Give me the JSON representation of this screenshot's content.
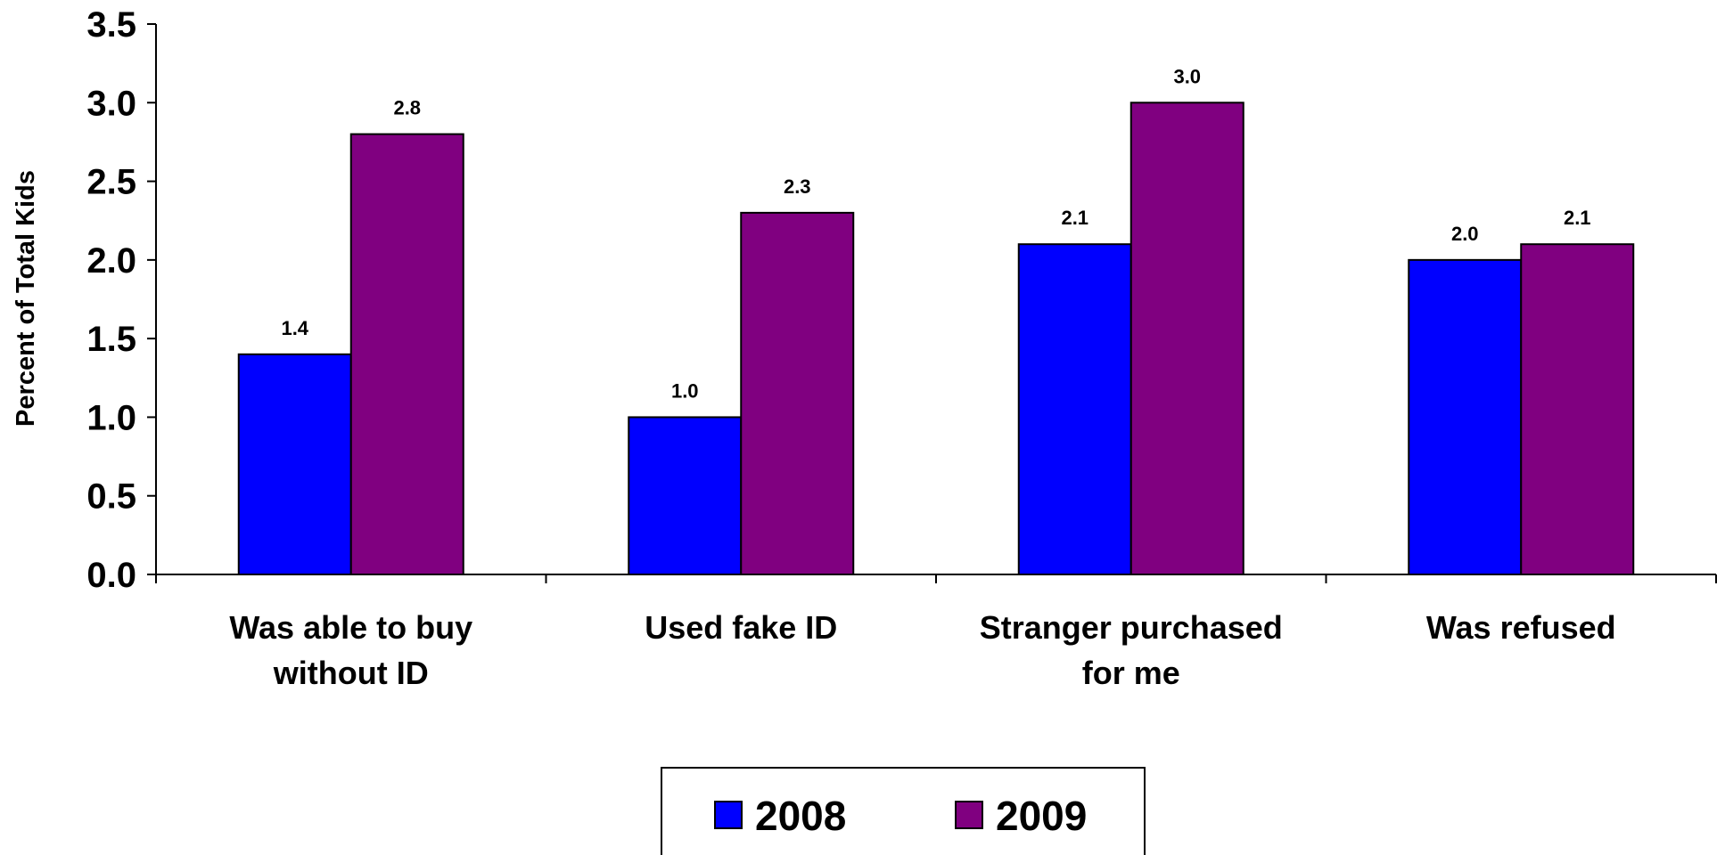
{
  "chart_data": {
    "type": "bar",
    "ylabel": "Percent of Total Kids",
    "ylim": [
      0,
      3.5
    ],
    "yticks": [
      "0.0",
      "0.5",
      "1.0",
      "1.5",
      "2.0",
      "2.5",
      "3.0",
      "3.5"
    ],
    "categories": [
      [
        "Was able to buy",
        "without ID"
      ],
      [
        "Used fake ID"
      ],
      [
        "Stranger purchased",
        "for me"
      ],
      [
        "Was refused"
      ]
    ],
    "series": [
      {
        "name": "2008",
        "color": "#0000FF",
        "values": [
          1.4,
          1.0,
          2.1,
          2.0
        ],
        "labels": [
          "1.4",
          "1.0",
          "2.1",
          "2.0"
        ]
      },
      {
        "name": "2009",
        "color": "#800080",
        "values": [
          2.8,
          2.3,
          3.0,
          2.1
        ],
        "labels": [
          "2.8",
          "2.3",
          "3.0",
          "2.1"
        ]
      }
    ],
    "grid": false,
    "legend": "bottom-center"
  }
}
